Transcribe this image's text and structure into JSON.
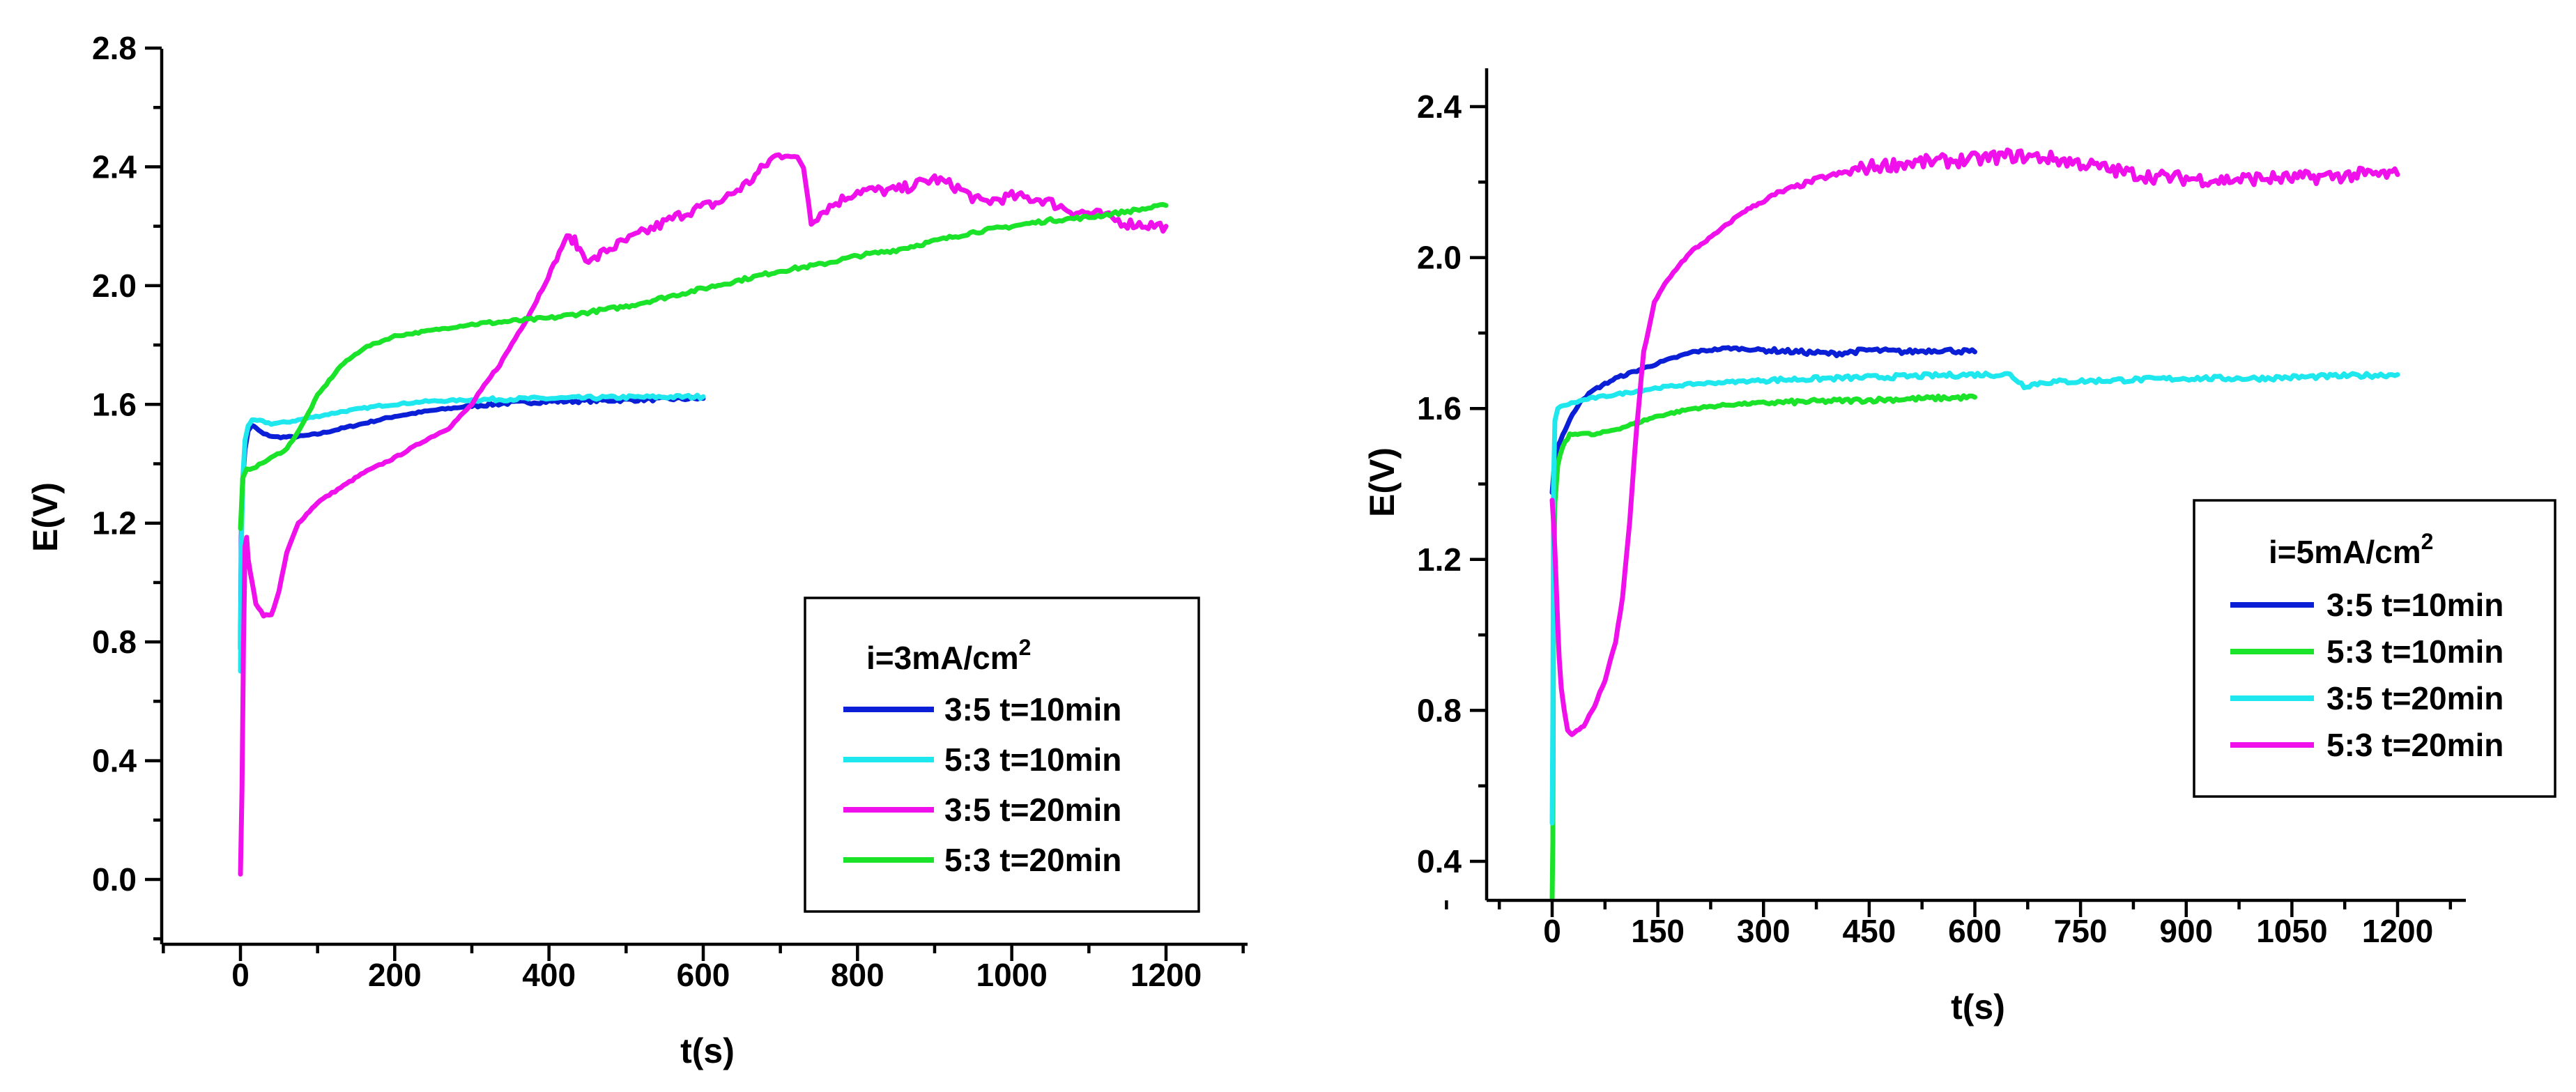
{
  "chart_data": [
    {
      "type": "line",
      "title": "",
      "xlabel": "t(s)",
      "ylabel": "E(V)",
      "xlim": [
        -100,
        1300
      ],
      "ylim": [
        -0.2,
        2.8
      ],
      "xticks": [
        0,
        200,
        400,
        600,
        800,
        1000,
        1200
      ],
      "yticks": [
        0.0,
        0.4,
        0.8,
        1.2,
        1.6,
        2.0,
        2.4,
        2.8
      ],
      "legend": {
        "title_main": "i=3mA/cm",
        "title_sup": "2",
        "placement": "bottom-right"
      },
      "series": [
        {
          "name": "3:5 t=10min",
          "color": "#0a1fd6",
          "points": [
            [
              0,
              0.78
            ],
            [
              1,
              1.15
            ],
            [
              3,
              1.35
            ],
            [
              6,
              1.45
            ],
            [
              10,
              1.51
            ],
            [
              15,
              1.53
            ],
            [
              20,
              1.52
            ],
            [
              30,
              1.5
            ],
            [
              45,
              1.49
            ],
            [
              70,
              1.49
            ],
            [
              100,
              1.5
            ],
            [
              150,
              1.53
            ],
            [
              200,
              1.56
            ],
            [
              250,
              1.58
            ],
            [
              300,
              1.595
            ],
            [
              350,
              1.605
            ],
            [
              400,
              1.61
            ],
            [
              450,
              1.612
            ],
            [
              500,
              1.615
            ],
            [
              550,
              1.618
            ],
            [
              600,
              1.62
            ]
          ]
        },
        {
          "name": "5:3 t=10min",
          "color": "#1ee8ee",
          "points": [
            [
              0,
              0.7
            ],
            [
              1,
              1.1
            ],
            [
              3,
              1.35
            ],
            [
              6,
              1.48
            ],
            [
              10,
              1.53
            ],
            [
              15,
              1.545
            ],
            [
              25,
              1.545
            ],
            [
              40,
              1.535
            ],
            [
              60,
              1.54
            ],
            [
              90,
              1.555
            ],
            [
              130,
              1.575
            ],
            [
              180,
              1.595
            ],
            [
              240,
              1.61
            ],
            [
              300,
              1.615
            ],
            [
              350,
              1.618
            ],
            [
              400,
              1.62
            ],
            [
              450,
              1.622
            ],
            [
              500,
              1.624
            ],
            [
              550,
              1.625
            ],
            [
              600,
              1.626
            ]
          ]
        },
        {
          "name": "3:5 t=20min",
          "color": "#f010ec",
          "points": [
            [
              0,
              0.02
            ],
            [
              2,
              0.3
            ],
            [
              4,
              0.8
            ],
            [
              6,
              1.12
            ],
            [
              8,
              1.15
            ],
            [
              10,
              1.08
            ],
            [
              15,
              1.0
            ],
            [
              20,
              0.93
            ],
            [
              30,
              0.89
            ],
            [
              40,
              0.89
            ],
            [
              50,
              0.97
            ],
            [
              60,
              1.1
            ],
            [
              75,
              1.2
            ],
            [
              100,
              1.27
            ],
            [
              130,
              1.32
            ],
            [
              160,
              1.37
            ],
            [
              200,
              1.42
            ],
            [
              240,
              1.48
            ],
            [
              270,
              1.52
            ],
            [
              300,
              1.6
            ],
            [
              340,
              1.75
            ],
            [
              380,
              1.93
            ],
            [
              410,
              2.09
            ],
            [
              420,
              2.15
            ],
            [
              430,
              2.16
            ],
            [
              440,
              2.12
            ],
            [
              455,
              2.08
            ],
            [
              475,
              2.12
            ],
            [
              500,
              2.15
            ],
            [
              540,
              2.2
            ],
            [
              580,
              2.25
            ],
            [
              620,
              2.28
            ],
            [
              660,
              2.35
            ],
            [
              690,
              2.43
            ],
            [
              710,
              2.45
            ],
            [
              730,
              2.4
            ],
            [
              740,
              2.22
            ],
            [
              760,
              2.26
            ],
            [
              800,
              2.32
            ],
            [
              850,
              2.32
            ],
            [
              900,
              2.36
            ],
            [
              930,
              2.33
            ],
            [
              960,
              2.28
            ],
            [
              1000,
              2.3
            ],
            [
              1040,
              2.29
            ],
            [
              1080,
              2.25
            ],
            [
              1110,
              2.24
            ],
            [
              1150,
              2.21
            ],
            [
              1200,
              2.2
            ]
          ]
        },
        {
          "name": "5:3 t=20min",
          "color": "#1be329",
          "points": [
            [
              0,
              1.18
            ],
            [
              3,
              1.35
            ],
            [
              8,
              1.38
            ],
            [
              20,
              1.39
            ],
            [
              40,
              1.42
            ],
            [
              60,
              1.45
            ],
            [
              80,
              1.53
            ],
            [
              100,
              1.63
            ],
            [
              130,
              1.73
            ],
            [
              160,
              1.79
            ],
            [
              200,
              1.83
            ],
            [
              250,
              1.85
            ],
            [
              300,
              1.87
            ],
            [
              350,
              1.88
            ],
            [
              400,
              1.89
            ],
            [
              450,
              1.91
            ],
            [
              500,
              1.93
            ],
            [
              550,
              1.96
            ],
            [
              600,
              1.99
            ],
            [
              650,
              2.02
            ],
            [
              700,
              2.05
            ],
            [
              750,
              2.07
            ],
            [
              800,
              2.1
            ],
            [
              850,
              2.12
            ],
            [
              900,
              2.15
            ],
            [
              950,
              2.18
            ],
            [
              1000,
              2.2
            ],
            [
              1050,
              2.22
            ],
            [
              1100,
              2.23
            ],
            [
              1150,
              2.25
            ],
            [
              1200,
              2.27
            ]
          ]
        }
      ]
    },
    {
      "type": "line",
      "title": "",
      "xlabel": "t(s)",
      "ylabel": "E(V)",
      "xlim": [
        -150,
        1300
      ],
      "ylim": [
        0.3,
        2.5
      ],
      "xticks": [
        0,
        150,
        300,
        450,
        600,
        750,
        900,
        1050,
        1200
      ],
      "yticks": [
        0.4,
        0.8,
        1.2,
        1.6,
        2.0,
        2.4
      ],
      "legend": {
        "title_main": "i=5mA/cm",
        "title_sup": "2",
        "placement": "right"
      },
      "series": [
        {
          "name": "3:5 t=10min",
          "color": "#0a1fd6",
          "points": [
            [
              0,
              1.38
            ],
            [
              3,
              1.45
            ],
            [
              8,
              1.5
            ],
            [
              15,
              1.53
            ],
            [
              25,
              1.57
            ],
            [
              40,
              1.62
            ],
            [
              60,
              1.65
            ],
            [
              90,
              1.68
            ],
            [
              120,
              1.7
            ],
            [
              150,
              1.72
            ],
            [
              200,
              1.75
            ],
            [
              250,
              1.76
            ],
            [
              300,
              1.755
            ],
            [
              350,
              1.75
            ],
            [
              400,
              1.745
            ],
            [
              450,
              1.755
            ],
            [
              500,
              1.75
            ],
            [
              550,
              1.755
            ],
            [
              600,
              1.75
            ]
          ]
        },
        {
          "name": "5:3 t=10min",
          "color": "#1be329",
          "points": [
            [
              0,
              0.3
            ],
            [
              1,
              0.45
            ],
            [
              2,
              1.1
            ],
            [
              4,
              1.35
            ],
            [
              8,
              1.45
            ],
            [
              15,
              1.5
            ],
            [
              25,
              1.53
            ],
            [
              40,
              1.535
            ],
            [
              60,
              1.53
            ],
            [
              80,
              1.54
            ],
            [
              100,
              1.55
            ],
            [
              150,
              1.58
            ],
            [
              200,
              1.6
            ],
            [
              250,
              1.61
            ],
            [
              300,
              1.615
            ],
            [
              400,
              1.62
            ],
            [
              500,
              1.625
            ],
            [
              600,
              1.63
            ]
          ]
        },
        {
          "name": "3:5 t=20min",
          "color": "#1ee8ee",
          "points": [
            [
              0,
              0.5
            ],
            [
              1,
              0.8
            ],
            [
              2,
              1.4
            ],
            [
              4,
              1.57
            ],
            [
              8,
              1.6
            ],
            [
              20,
              1.61
            ],
            [
              50,
              1.625
            ],
            [
              100,
              1.64
            ],
            [
              150,
              1.655
            ],
            [
              200,
              1.665
            ],
            [
              300,
              1.675
            ],
            [
              400,
              1.68
            ],
            [
              500,
              1.685
            ],
            [
              600,
              1.69
            ],
            [
              650,
              1.69
            ],
            [
              670,
              1.66
            ],
            [
              700,
              1.67
            ],
            [
              800,
              1.675
            ],
            [
              900,
              1.68
            ],
            [
              1000,
              1.68
            ],
            [
              1100,
              1.685
            ],
            [
              1200,
              1.69
            ]
          ]
        },
        {
          "name": "5:3 t=20min",
          "color": "#f010ec",
          "points": [
            [
              0,
              1.36
            ],
            [
              2,
              1.3
            ],
            [
              4,
              1.22
            ],
            [
              6,
              1.12
            ],
            [
              8,
              1.02
            ],
            [
              10,
              0.94
            ],
            [
              13,
              0.86
            ],
            [
              17,
              0.8
            ],
            [
              22,
              0.75
            ],
            [
              28,
              0.735
            ],
            [
              35,
              0.745
            ],
            [
              45,
              0.76
            ],
            [
              60,
              0.81
            ],
            [
              75,
              0.88
            ],
            [
              90,
              0.98
            ],
            [
              100,
              1.1
            ],
            [
              110,
              1.3
            ],
            [
              120,
              1.55
            ],
            [
              130,
              1.75
            ],
            [
              145,
              1.88
            ],
            [
              160,
              1.93
            ],
            [
              180,
              1.98
            ],
            [
              200,
              2.02
            ],
            [
              230,
              2.06
            ],
            [
              270,
              2.12
            ],
            [
              320,
              2.17
            ],
            [
              380,
              2.21
            ],
            [
              450,
              2.24
            ],
            [
              500,
              2.25
            ],
            [
              550,
              2.255
            ],
            [
              600,
              2.26
            ],
            [
              650,
              2.27
            ],
            [
              700,
              2.265
            ],
            [
              750,
              2.25
            ],
            [
              800,
              2.23
            ],
            [
              850,
              2.215
            ],
            [
              900,
              2.21
            ],
            [
              950,
              2.205
            ],
            [
              1000,
              2.21
            ],
            [
              1050,
              2.21
            ],
            [
              1100,
              2.215
            ],
            [
              1150,
              2.22
            ],
            [
              1200,
              2.22
            ]
          ]
        }
      ]
    }
  ]
}
